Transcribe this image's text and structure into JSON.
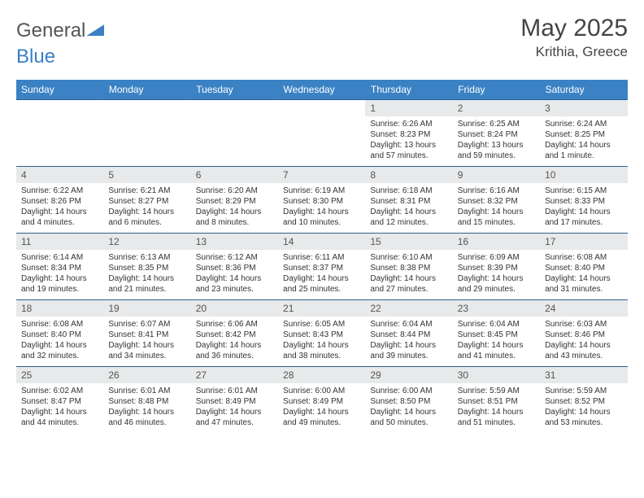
{
  "logo": {
    "text1": "General",
    "text2": "Blue"
  },
  "title": "May 2025",
  "location": "Krithia, Greece",
  "colors": {
    "header_bg": "#3b82c4",
    "header_text": "#ffffff",
    "daynum_bg": "#e8e9ea",
    "border": "#2a5f8f",
    "text": "#333333",
    "title_text": "#444444"
  },
  "weekdays": [
    "Sunday",
    "Monday",
    "Tuesday",
    "Wednesday",
    "Thursday",
    "Friday",
    "Saturday"
  ],
  "weeks": [
    [
      null,
      null,
      null,
      null,
      {
        "n": "1",
        "sr": "6:26 AM",
        "ss": "8:23 PM",
        "dl": "13 hours and 57 minutes."
      },
      {
        "n": "2",
        "sr": "6:25 AM",
        "ss": "8:24 PM",
        "dl": "13 hours and 59 minutes."
      },
      {
        "n": "3",
        "sr": "6:24 AM",
        "ss": "8:25 PM",
        "dl": "14 hours and 1 minute."
      }
    ],
    [
      {
        "n": "4",
        "sr": "6:22 AM",
        "ss": "8:26 PM",
        "dl": "14 hours and 4 minutes."
      },
      {
        "n": "5",
        "sr": "6:21 AM",
        "ss": "8:27 PM",
        "dl": "14 hours and 6 minutes."
      },
      {
        "n": "6",
        "sr": "6:20 AM",
        "ss": "8:29 PM",
        "dl": "14 hours and 8 minutes."
      },
      {
        "n": "7",
        "sr": "6:19 AM",
        "ss": "8:30 PM",
        "dl": "14 hours and 10 minutes."
      },
      {
        "n": "8",
        "sr": "6:18 AM",
        "ss": "8:31 PM",
        "dl": "14 hours and 12 minutes."
      },
      {
        "n": "9",
        "sr": "6:16 AM",
        "ss": "8:32 PM",
        "dl": "14 hours and 15 minutes."
      },
      {
        "n": "10",
        "sr": "6:15 AM",
        "ss": "8:33 PM",
        "dl": "14 hours and 17 minutes."
      }
    ],
    [
      {
        "n": "11",
        "sr": "6:14 AM",
        "ss": "8:34 PM",
        "dl": "14 hours and 19 minutes."
      },
      {
        "n": "12",
        "sr": "6:13 AM",
        "ss": "8:35 PM",
        "dl": "14 hours and 21 minutes."
      },
      {
        "n": "13",
        "sr": "6:12 AM",
        "ss": "8:36 PM",
        "dl": "14 hours and 23 minutes."
      },
      {
        "n": "14",
        "sr": "6:11 AM",
        "ss": "8:37 PM",
        "dl": "14 hours and 25 minutes."
      },
      {
        "n": "15",
        "sr": "6:10 AM",
        "ss": "8:38 PM",
        "dl": "14 hours and 27 minutes."
      },
      {
        "n": "16",
        "sr": "6:09 AM",
        "ss": "8:39 PM",
        "dl": "14 hours and 29 minutes."
      },
      {
        "n": "17",
        "sr": "6:08 AM",
        "ss": "8:40 PM",
        "dl": "14 hours and 31 minutes."
      }
    ],
    [
      {
        "n": "18",
        "sr": "6:08 AM",
        "ss": "8:40 PM",
        "dl": "14 hours and 32 minutes."
      },
      {
        "n": "19",
        "sr": "6:07 AM",
        "ss": "8:41 PM",
        "dl": "14 hours and 34 minutes."
      },
      {
        "n": "20",
        "sr": "6:06 AM",
        "ss": "8:42 PM",
        "dl": "14 hours and 36 minutes."
      },
      {
        "n": "21",
        "sr": "6:05 AM",
        "ss": "8:43 PM",
        "dl": "14 hours and 38 minutes."
      },
      {
        "n": "22",
        "sr": "6:04 AM",
        "ss": "8:44 PM",
        "dl": "14 hours and 39 minutes."
      },
      {
        "n": "23",
        "sr": "6:04 AM",
        "ss": "8:45 PM",
        "dl": "14 hours and 41 minutes."
      },
      {
        "n": "24",
        "sr": "6:03 AM",
        "ss": "8:46 PM",
        "dl": "14 hours and 43 minutes."
      }
    ],
    [
      {
        "n": "25",
        "sr": "6:02 AM",
        "ss": "8:47 PM",
        "dl": "14 hours and 44 minutes."
      },
      {
        "n": "26",
        "sr": "6:01 AM",
        "ss": "8:48 PM",
        "dl": "14 hours and 46 minutes."
      },
      {
        "n": "27",
        "sr": "6:01 AM",
        "ss": "8:49 PM",
        "dl": "14 hours and 47 minutes."
      },
      {
        "n": "28",
        "sr": "6:00 AM",
        "ss": "8:49 PM",
        "dl": "14 hours and 49 minutes."
      },
      {
        "n": "29",
        "sr": "6:00 AM",
        "ss": "8:50 PM",
        "dl": "14 hours and 50 minutes."
      },
      {
        "n": "30",
        "sr": "5:59 AM",
        "ss": "8:51 PM",
        "dl": "14 hours and 51 minutes."
      },
      {
        "n": "31",
        "sr": "5:59 AM",
        "ss": "8:52 PM",
        "dl": "14 hours and 53 minutes."
      }
    ]
  ],
  "labels": {
    "sunrise": "Sunrise:",
    "sunset": "Sunset:",
    "daylight": "Daylight:"
  }
}
